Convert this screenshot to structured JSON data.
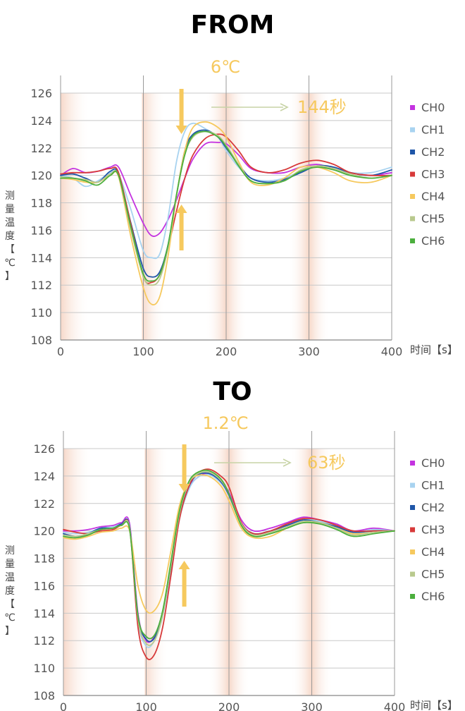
{
  "chart_data": [
    {
      "type": "line",
      "heading": "FROM",
      "title": "6℃",
      "annotation": "144秒",
      "xlabel": "时间【s】",
      "ylabel": [
        "测",
        "量",
        "温",
        "度",
        "【",
        "℃",
        "】"
      ],
      "xlim": [
        0,
        400
      ],
      "ylim": [
        108,
        126
      ],
      "xticks": [
        0,
        100,
        200,
        300,
        400
      ],
      "yticks": [
        108,
        110,
        112,
        114,
        116,
        118,
        120,
        122,
        124,
        126
      ],
      "grid": true,
      "legend_position": "right",
      "colors": {
        "annotation": "#f6c95e",
        "time_arrow": "#c7d3a5",
        "band": "#f8ddd0"
      },
      "series": [
        {
          "name": "CH0",
          "color": "#c433e0",
          "x": [
            0,
            15,
            30,
            45,
            60,
            70,
            85,
            100,
            110,
            120,
            130,
            140,
            150,
            160,
            175,
            190,
            200,
            215,
            230,
            250,
            270,
            290,
            310,
            330,
            350,
            375,
            400
          ],
          "y": [
            120,
            120.5,
            120.2,
            120.3,
            120.6,
            120.6,
            118.5,
            116.5,
            115.6,
            115.8,
            116.8,
            118.2,
            119.8,
            121.2,
            122.3,
            122.4,
            122.3,
            121.5,
            120.5,
            120.2,
            120.2,
            120.6,
            120.8,
            120.5,
            120.2,
            120,
            120.2
          ]
        },
        {
          "name": "CH1",
          "color": "#a8d3f0",
          "x": [
            0,
            15,
            30,
            45,
            60,
            70,
            85,
            100,
            110,
            120,
            130,
            140,
            150,
            160,
            175,
            190,
            200,
            215,
            230,
            250,
            270,
            290,
            310,
            330,
            350,
            375,
            400
          ],
          "y": [
            120,
            119.8,
            119.2,
            119.6,
            120.2,
            120.1,
            117.5,
            114.5,
            114,
            114.3,
            117,
            121,
            123.2,
            123.8,
            123.4,
            122.8,
            121.8,
            120.6,
            119.8,
            119.6,
            119.8,
            120.3,
            120.7,
            120.5,
            120.2,
            120.2,
            120.6
          ]
        },
        {
          "name": "CH2",
          "color": "#1f56a8",
          "x": [
            0,
            15,
            30,
            45,
            60,
            70,
            85,
            100,
            110,
            120,
            130,
            140,
            150,
            160,
            175,
            190,
            200,
            215,
            230,
            250,
            270,
            290,
            310,
            330,
            350,
            375,
            400
          ],
          "y": [
            120,
            120.1,
            119.8,
            119.5,
            120.3,
            120.1,
            116.5,
            113.2,
            112.6,
            113,
            115,
            118.5,
            121.8,
            123,
            123.3,
            122.8,
            122,
            120.8,
            119.8,
            119.5,
            119.7,
            120.2,
            120.7,
            120.6,
            120.2,
            120,
            120.4
          ]
        },
        {
          "name": "CH3",
          "color": "#d73a3a",
          "x": [
            0,
            15,
            30,
            45,
            60,
            70,
            85,
            100,
            110,
            120,
            130,
            140,
            150,
            160,
            175,
            190,
            200,
            215,
            230,
            250,
            270,
            290,
            310,
            330,
            350,
            375,
            400
          ],
          "y": [
            120.1,
            120.2,
            120.2,
            120.3,
            120.5,
            120.2,
            116.4,
            112.6,
            112.2,
            112.8,
            114.8,
            117.4,
            119.8,
            121.5,
            122.7,
            123,
            122.8,
            121.8,
            120.6,
            120.2,
            120.4,
            120.9,
            121.1,
            120.8,
            120.2,
            120,
            120
          ]
        },
        {
          "name": "CH4",
          "color": "#f6c95e",
          "x": [
            0,
            15,
            30,
            45,
            60,
            70,
            85,
            100,
            110,
            120,
            130,
            140,
            150,
            160,
            175,
            190,
            200,
            215,
            230,
            250,
            270,
            290,
            310,
            330,
            350,
            375,
            400
          ],
          "y": [
            119.8,
            119.7,
            119.5,
            119.5,
            120,
            119.9,
            115.5,
            111.8,
            110.6,
            111.2,
            114.2,
            118.5,
            121.8,
            123.5,
            123.9,
            123.5,
            122.8,
            121,
            119.5,
            119.3,
            119.8,
            120.6,
            120.6,
            120.2,
            119.6,
            119.5,
            120
          ]
        },
        {
          "name": "CH5",
          "color": "#b9c98e",
          "x": [
            0,
            15,
            30,
            45,
            60,
            70,
            85,
            100,
            110,
            120,
            130,
            140,
            150,
            160,
            175,
            190,
            200,
            215,
            230,
            250,
            270,
            290,
            310,
            330,
            350,
            375,
            400
          ],
          "y": [
            119.9,
            119.8,
            119.7,
            119.5,
            120.1,
            120,
            116,
            112.6,
            112,
            112.5,
            114.8,
            118.5,
            121.5,
            122.8,
            123.2,
            122.9,
            122.2,
            120.8,
            119.6,
            119.4,
            119.6,
            120.4,
            120.7,
            120.5,
            120.1,
            119.8,
            120
          ]
        },
        {
          "name": "CH6",
          "color": "#4caf3d",
          "x": [
            0,
            15,
            30,
            45,
            60,
            70,
            85,
            100,
            110,
            120,
            130,
            140,
            150,
            160,
            175,
            190,
            200,
            215,
            230,
            250,
            270,
            290,
            310,
            330,
            350,
            375,
            400
          ],
          "y": [
            119.8,
            119.8,
            119.6,
            119.3,
            120,
            120,
            116.2,
            112.8,
            112.3,
            112.8,
            115,
            118.6,
            121.5,
            122.9,
            123.2,
            122.8,
            122.1,
            120.7,
            119.6,
            119.4,
            119.6,
            120.3,
            120.6,
            120.4,
            120,
            119.8,
            120
          ]
        }
      ]
    },
    {
      "type": "line",
      "heading": "TO",
      "title": "1.2℃",
      "annotation": "63秒",
      "xlabel": "时间【s】",
      "ylabel": [
        "测",
        "量",
        "温",
        "度",
        "【",
        "℃",
        "】"
      ],
      "xlim": [
        0,
        400
      ],
      "ylim": [
        108,
        126
      ],
      "xticks": [
        0,
        100,
        200,
        300,
        400
      ],
      "yticks": [
        108,
        110,
        112,
        114,
        116,
        118,
        120,
        122,
        124,
        126
      ],
      "grid": true,
      "legend_position": "right",
      "colors": {
        "annotation": "#f6c95e",
        "time_arrow": "#c7d3a5",
        "band": "#f8ddd0"
      },
      "series": [
        {
          "name": "CH0",
          "color": "#c433e0",
          "x": [
            0,
            15,
            30,
            45,
            60,
            70,
            80,
            90,
            100,
            110,
            120,
            130,
            140,
            150,
            160,
            175,
            190,
            200,
            215,
            230,
            250,
            270,
            290,
            310,
            330,
            350,
            375,
            400
          ],
          "y": [
            120,
            120,
            120.1,
            120.3,
            120.4,
            120.6,
            120.5,
            114,
            112,
            112.3,
            114,
            117.5,
            121,
            123,
            123.8,
            124.2,
            123.6,
            122.8,
            120.8,
            120,
            120.2,
            120.6,
            121,
            120.8,
            120.5,
            120,
            120.2,
            120
          ]
        },
        {
          "name": "CH1",
          "color": "#a8d3f0",
          "x": [
            0,
            15,
            30,
            45,
            60,
            70,
            80,
            90,
            100,
            110,
            120,
            130,
            140,
            150,
            160,
            175,
            190,
            200,
            215,
            230,
            250,
            270,
            290,
            310,
            330,
            350,
            375,
            400
          ],
          "y": [
            119.9,
            119.8,
            119.9,
            120.2,
            120.3,
            120.5,
            120.3,
            113.5,
            111.6,
            112,
            113.8,
            117.2,
            120.8,
            122.8,
            123.8,
            124.1,
            123.5,
            122.6,
            120.6,
            119.8,
            120,
            120.4,
            120.8,
            120.7,
            120.3,
            119.9,
            120.1,
            120
          ]
        },
        {
          "name": "CH2",
          "color": "#1f56a8",
          "x": [
            0,
            15,
            30,
            45,
            60,
            70,
            80,
            90,
            100,
            110,
            120,
            130,
            140,
            150,
            160,
            175,
            190,
            200,
            215,
            230,
            250,
            270,
            290,
            310,
            330,
            350,
            375,
            400
          ],
          "y": [
            119.8,
            119.6,
            119.8,
            120.2,
            120.2,
            120.5,
            120.3,
            113.8,
            112.1,
            112.2,
            114,
            117.4,
            121,
            123,
            124,
            124.2,
            123.6,
            122.6,
            120.5,
            119.8,
            120,
            120.4,
            120.8,
            120.6,
            120.3,
            119.9,
            120,
            120
          ]
        },
        {
          "name": "CH3",
          "color": "#d73a3a",
          "x": [
            0,
            15,
            30,
            45,
            60,
            70,
            80,
            90,
            100,
            110,
            120,
            130,
            140,
            150,
            160,
            175,
            190,
            200,
            215,
            230,
            250,
            270,
            290,
            310,
            330,
            350,
            375,
            400
          ],
          "y": [
            120.1,
            119.9,
            119.8,
            120,
            120.1,
            120.4,
            120.2,
            113,
            110.8,
            111,
            113,
            116.8,
            120.8,
            123,
            124.1,
            124.5,
            124,
            123.2,
            120.6,
            119.8,
            120,
            120.5,
            120.9,
            120.8,
            120.4,
            120,
            120,
            120
          ]
        },
        {
          "name": "CH4",
          "color": "#f6c95e",
          "x": [
            0,
            15,
            30,
            45,
            60,
            70,
            80,
            90,
            100,
            110,
            120,
            130,
            140,
            150,
            160,
            175,
            190,
            200,
            215,
            230,
            250,
            270,
            290,
            310,
            330,
            350,
            375,
            400
          ],
          "y": [
            119.5,
            119.4,
            119.6,
            119.9,
            120,
            120.2,
            120,
            116,
            114.2,
            114.2,
            115.5,
            118.6,
            121.8,
            123.4,
            124,
            124,
            123.3,
            122.2,
            120.2,
            119.5,
            119.6,
            120.2,
            120.6,
            120.6,
            120.2,
            119.8,
            119.9,
            120
          ]
        },
        {
          "name": "CH5",
          "color": "#b9c98e",
          "x": [
            0,
            15,
            30,
            45,
            60,
            70,
            80,
            90,
            100,
            110,
            120,
            130,
            140,
            150,
            160,
            175,
            190,
            200,
            215,
            230,
            250,
            270,
            290,
            310,
            330,
            350,
            375,
            400
          ],
          "y": [
            119.7,
            119.6,
            119.8,
            120.1,
            120.2,
            120.4,
            120.2,
            113.6,
            111.8,
            112,
            113.9,
            117.5,
            121.2,
            123.3,
            124.1,
            124.3,
            123.7,
            122.7,
            120.5,
            119.7,
            119.9,
            120.3,
            120.7,
            120.6,
            120.2,
            119.7,
            119.9,
            120
          ]
        },
        {
          "name": "CH6",
          "color": "#4caf3d",
          "x": [
            0,
            15,
            30,
            45,
            60,
            70,
            80,
            90,
            100,
            110,
            120,
            130,
            140,
            150,
            160,
            175,
            190,
            200,
            215,
            230,
            250,
            270,
            290,
            310,
            330,
            350,
            375,
            400
          ],
          "y": [
            119.6,
            119.5,
            119.7,
            120.1,
            120.2,
            120.4,
            120.1,
            113.8,
            112.3,
            112.4,
            114.2,
            117.8,
            121.4,
            123.4,
            124.2,
            124.4,
            123.8,
            122.7,
            120.4,
            119.6,
            119.8,
            120.2,
            120.6,
            120.5,
            120.1,
            119.6,
            119.8,
            120
          ]
        }
      ]
    }
  ]
}
